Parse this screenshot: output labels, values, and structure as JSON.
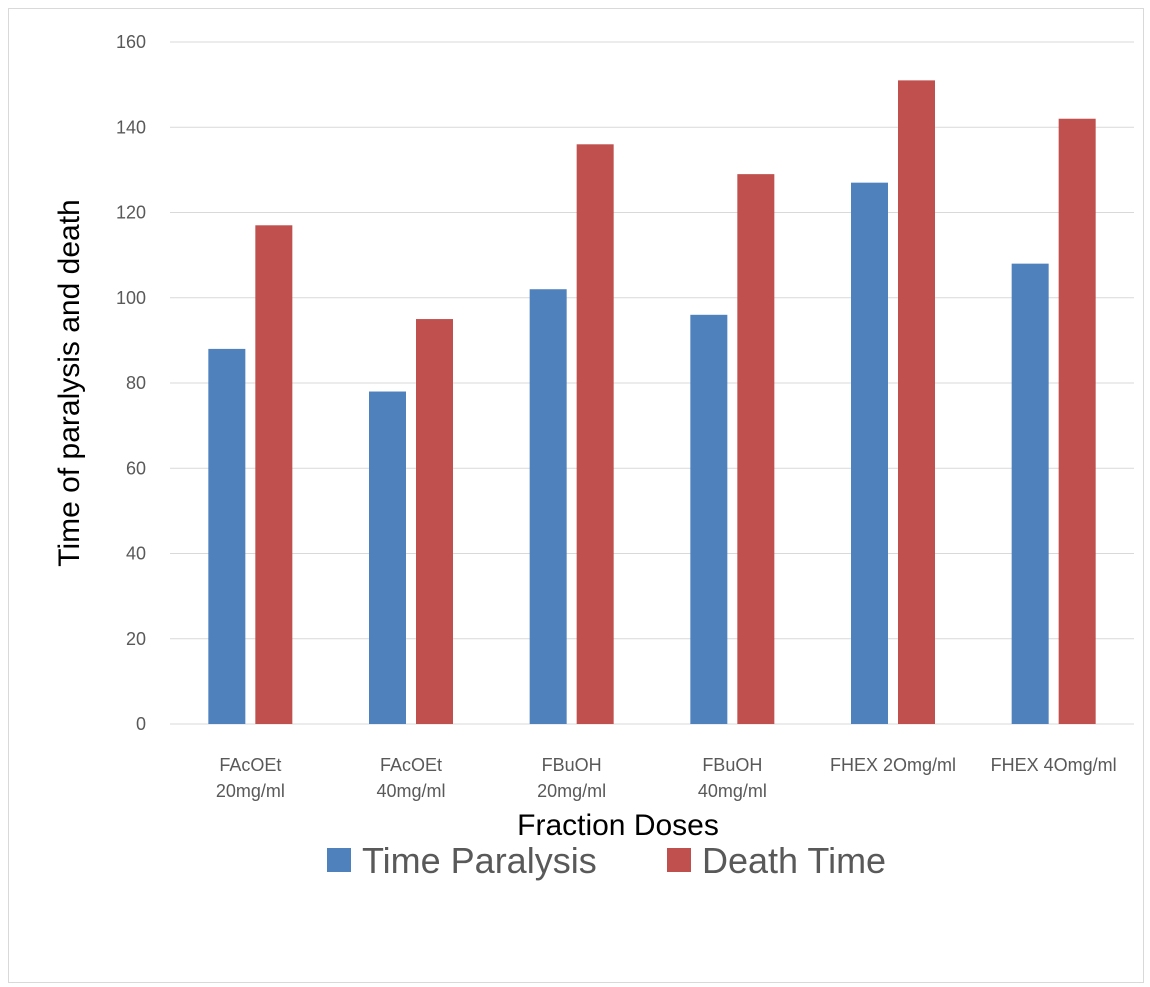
{
  "chart_data": {
    "type": "bar",
    "title": "",
    "xlabel": "Fraction Doses",
    "ylabel": "Time of paralysis  and death",
    "ylim": [
      0,
      160
    ],
    "yticks": [
      0,
      20,
      40,
      60,
      80,
      100,
      120,
      140,
      160
    ],
    "grid": true,
    "legend_position": "bottom",
    "categories": [
      [
        "FAcOEt",
        "20mg/ml"
      ],
      [
        "FAcOEt",
        "40mg/ml"
      ],
      [
        "FBuOH",
        "20mg/ml"
      ],
      [
        "FBuOH",
        "40mg/ml"
      ],
      [
        "FHEX 2Omg/ml"
      ],
      [
        "FHEX 4Omg/ml"
      ]
    ],
    "series": [
      {
        "name": "Time Paralysis",
        "color": "#4f81bd",
        "values": [
          88,
          78,
          102,
          96,
          127,
          108
        ]
      },
      {
        "name": "Death Time",
        "color": "#c0504d",
        "values": [
          117,
          95,
          136,
          129,
          151,
          142
        ]
      }
    ]
  }
}
